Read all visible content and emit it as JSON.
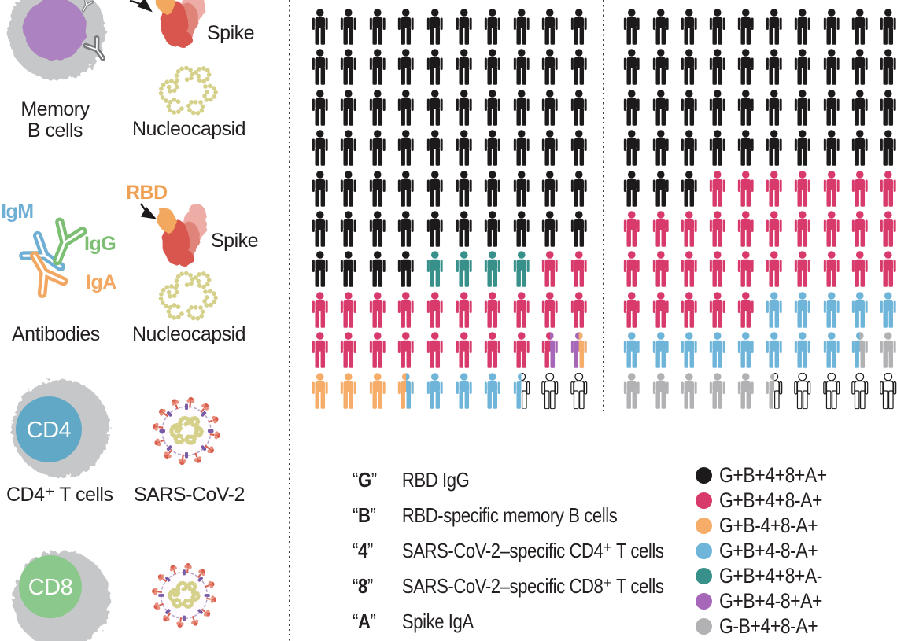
{
  "colors": {
    "black": "#1d1a1b",
    "pink": "#d83a6b",
    "orange": "#f5ad69",
    "blue": "#6fb5da",
    "teal": "#37908a",
    "purple": "#a667b8",
    "gray": "#b2b2b4",
    "white": "#ffffff",
    "outline_stroke": "#1d1a1b"
  },
  "left_panel": {
    "memory_b_label_line1": "Memory",
    "memory_b_label_line2": "B cells",
    "spike_top_label": "Spike",
    "nucleocapsid_top_label": "Nucleocapsid",
    "igm_label": "IgM",
    "igg_label": "IgG",
    "iga_label": "IgA",
    "antibodies_label": "Antibodies",
    "rbd_label": "RBD",
    "spike_mid_label": "Spike",
    "nucleocapsid_mid_label": "Nucleocapsid",
    "cd4_badge": "CD4",
    "cd4_label": "CD4⁺ T cells",
    "sars_label": "SARS-CoV-2",
    "cd8_badge": "CD8"
  },
  "grids": {
    "left": [
      "K K K K K K K K K K",
      "K K K K K K K K K K",
      "K K K K K K K K K K",
      "K K K K K K K K K K",
      "K K K K K K K K K K",
      "K K K K K K K K K K",
      "K K K K T T T T P P",
      "P P P P P P P P P P",
      "P P P P P P P P P/U U/O",
      "O O O O/B B B B B/W W W"
    ],
    "right": [
      "K K K K K K K K K K",
      "K K K K K K K K K K",
      "K K K K K K K K K K",
      "K K K K K K K K K K",
      "K K K P P P P P P P",
      "P P P P P P P P P P",
      "P P P P P P P P P P",
      "P P P P P B B B B B",
      "B B B B B B B B B/G G",
      "G G G G G G/W W W W W"
    ]
  },
  "key_legend": {
    "quote_open": "“",
    "quote_close": "”",
    "entries": [
      {
        "letter": "G",
        "desc": "RBD IgG"
      },
      {
        "letter": "B",
        "desc": "RBD-specific memory B cells"
      },
      {
        "letter": "4",
        "desc": "SARS-CoV-2–specific CD4⁺ T cells"
      },
      {
        "letter": "8",
        "desc": "SARS-CoV-2–specific CD8⁺ T cells"
      },
      {
        "letter": "A",
        "desc": "Spike IgA"
      }
    ]
  },
  "color_legend": {
    "entries": [
      {
        "color_name": "black",
        "color": "#1d1a1b",
        "label": "G+B+4+8+A+"
      },
      {
        "color_name": "pink",
        "color": "#d83a6b",
        "label": "G+B+4+8-A+"
      },
      {
        "color_name": "orange",
        "color": "#f5ad69",
        "label": "G+B-4+8-A+"
      },
      {
        "color_name": "blue",
        "color": "#6fb5da",
        "label": "G+B+4-8-A+"
      },
      {
        "color_name": "teal",
        "color": "#37908a",
        "label": "G+B+4+8+A-"
      },
      {
        "color_name": "purple",
        "color": "#a667b8",
        "label": "G+B+4-8+A+"
      },
      {
        "color_name": "gray",
        "color": "#b2b2b4",
        "label": "G-B+4+8-A+"
      }
    ]
  },
  "chart_data": [
    {
      "type": "pictograph",
      "panel": "left",
      "rows": 10,
      "cols": 10,
      "total_icons": 100,
      "unit": "1 person icon = 1 unit; split icons = 0.5 each phenotype",
      "counts": {
        "G+B+4+8+A+ (black)": 64,
        "G+B+4+8+A- (teal)": 4,
        "G+B+4+8-A+ (pink)": 20.5,
        "G+B+4-8+A+ (purple)": 1,
        "G+B-4+8-A+ (orange)": 4,
        "G+B+4-8-A+ (blue)": 4,
        "unlabeled (white outline)": 2.5
      }
    },
    {
      "type": "pictograph",
      "panel": "right",
      "rows": 10,
      "cols": 10,
      "total_icons": 100,
      "unit": "1 person icon = 1 unit; split icons = 0.5 each phenotype",
      "counts": {
        "G+B+4+8+A+ (black)": 43,
        "G+B+4+8-A+ (pink)": 32,
        "G+B+4-8-A+ (blue)": 13.5,
        "G-B+4+8-A+ (gray)": 7,
        "unlabeled (white outline)": 4.5
      }
    }
  ]
}
